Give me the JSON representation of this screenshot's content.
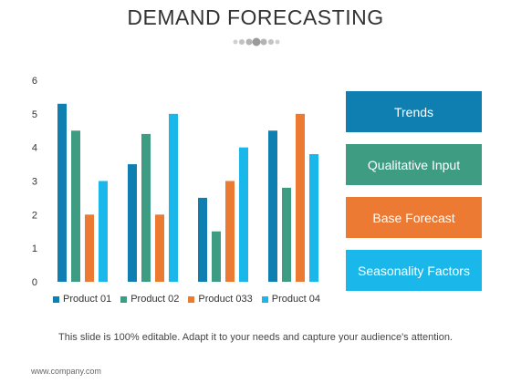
{
  "title": "DEMAND FORECASTING",
  "chart_data": {
    "type": "bar",
    "categories": [
      "",
      "",
      "",
      ""
    ],
    "series": [
      {
        "name": "Product 01",
        "color": "#0e7fb0",
        "values": [
          5.3,
          3.5,
          2.5,
          4.5
        ]
      },
      {
        "name": "Product 02",
        "color": "#3d9c82",
        "values": [
          4.5,
          4.4,
          1.5,
          2.8
        ]
      },
      {
        "name": "Product 033",
        "color": "#ec7a32",
        "values": [
          2.0,
          2.0,
          3.0,
          5.0
        ]
      },
      {
        "name": "Product 04",
        "color": "#1ab7ea",
        "values": [
          3.0,
          5.0,
          4.0,
          3.8
        ]
      }
    ],
    "yticks": [
      0,
      1,
      2,
      3,
      4,
      5,
      6
    ],
    "ylim": [
      0,
      6
    ],
    "xlabel": "",
    "ylabel": "",
    "grid": false,
    "legend": "bottom"
  },
  "side_panel": {
    "items": [
      {
        "label": "Trends",
        "color": "#0e7fb0"
      },
      {
        "label": "Qualitative Input",
        "color": "#3d9c82"
      },
      {
        "label": "Base Forecast",
        "color": "#ec7a32"
      },
      {
        "label": "Seasonality Factors",
        "color": "#1ab7ea"
      }
    ]
  },
  "caption": "This slide is 100% editable. Adapt it to your needs and capture your audience's attention.",
  "footer": "www.company.com"
}
